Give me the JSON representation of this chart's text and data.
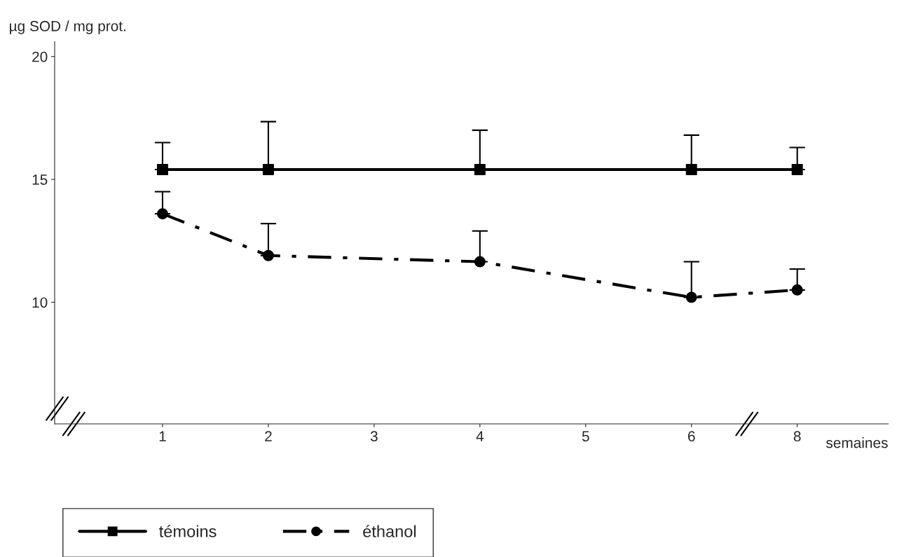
{
  "chart_data": {
    "type": "line",
    "categories": [
      "1",
      "2",
      "3",
      "4",
      "5",
      "6",
      "8"
    ],
    "xlabel": "semaines",
    "ylabel": "µg SOD / mg prot.",
    "ylim": [
      5.05,
      20.6
    ],
    "yticks": [
      10,
      15,
      20
    ],
    "grid": false,
    "legend": "bottom left",
    "series": [
      {
        "name": "témoins",
        "color": "#000000",
        "marker": "square",
        "line_style": "solid",
        "values": [
          15.4,
          15.4,
          null,
          15.4,
          null,
          15.4,
          15.4
        ],
        "errors": [
          [
            15.4,
            16.5
          ],
          [
            15.4,
            17.35
          ],
          null,
          [
            15.4,
            17.0
          ],
          null,
          [
            15.4,
            16.8
          ],
          [
            15.4,
            16.3
          ]
        ]
      },
      {
        "name": "éthanol",
        "color": "#000000",
        "marker": "circle",
        "line_style": "dashed",
        "values": [
          13.6,
          11.9,
          null,
          11.65,
          null,
          10.2,
          10.5
        ],
        "errors": [
          [
            13.6,
            14.5
          ],
          [
            11.9,
            13.2
          ],
          null,
          [
            11.65,
            12.9
          ],
          null,
          [
            10.2,
            11.65
          ],
          [
            10.5,
            11.35
          ]
        ]
      }
    ]
  }
}
